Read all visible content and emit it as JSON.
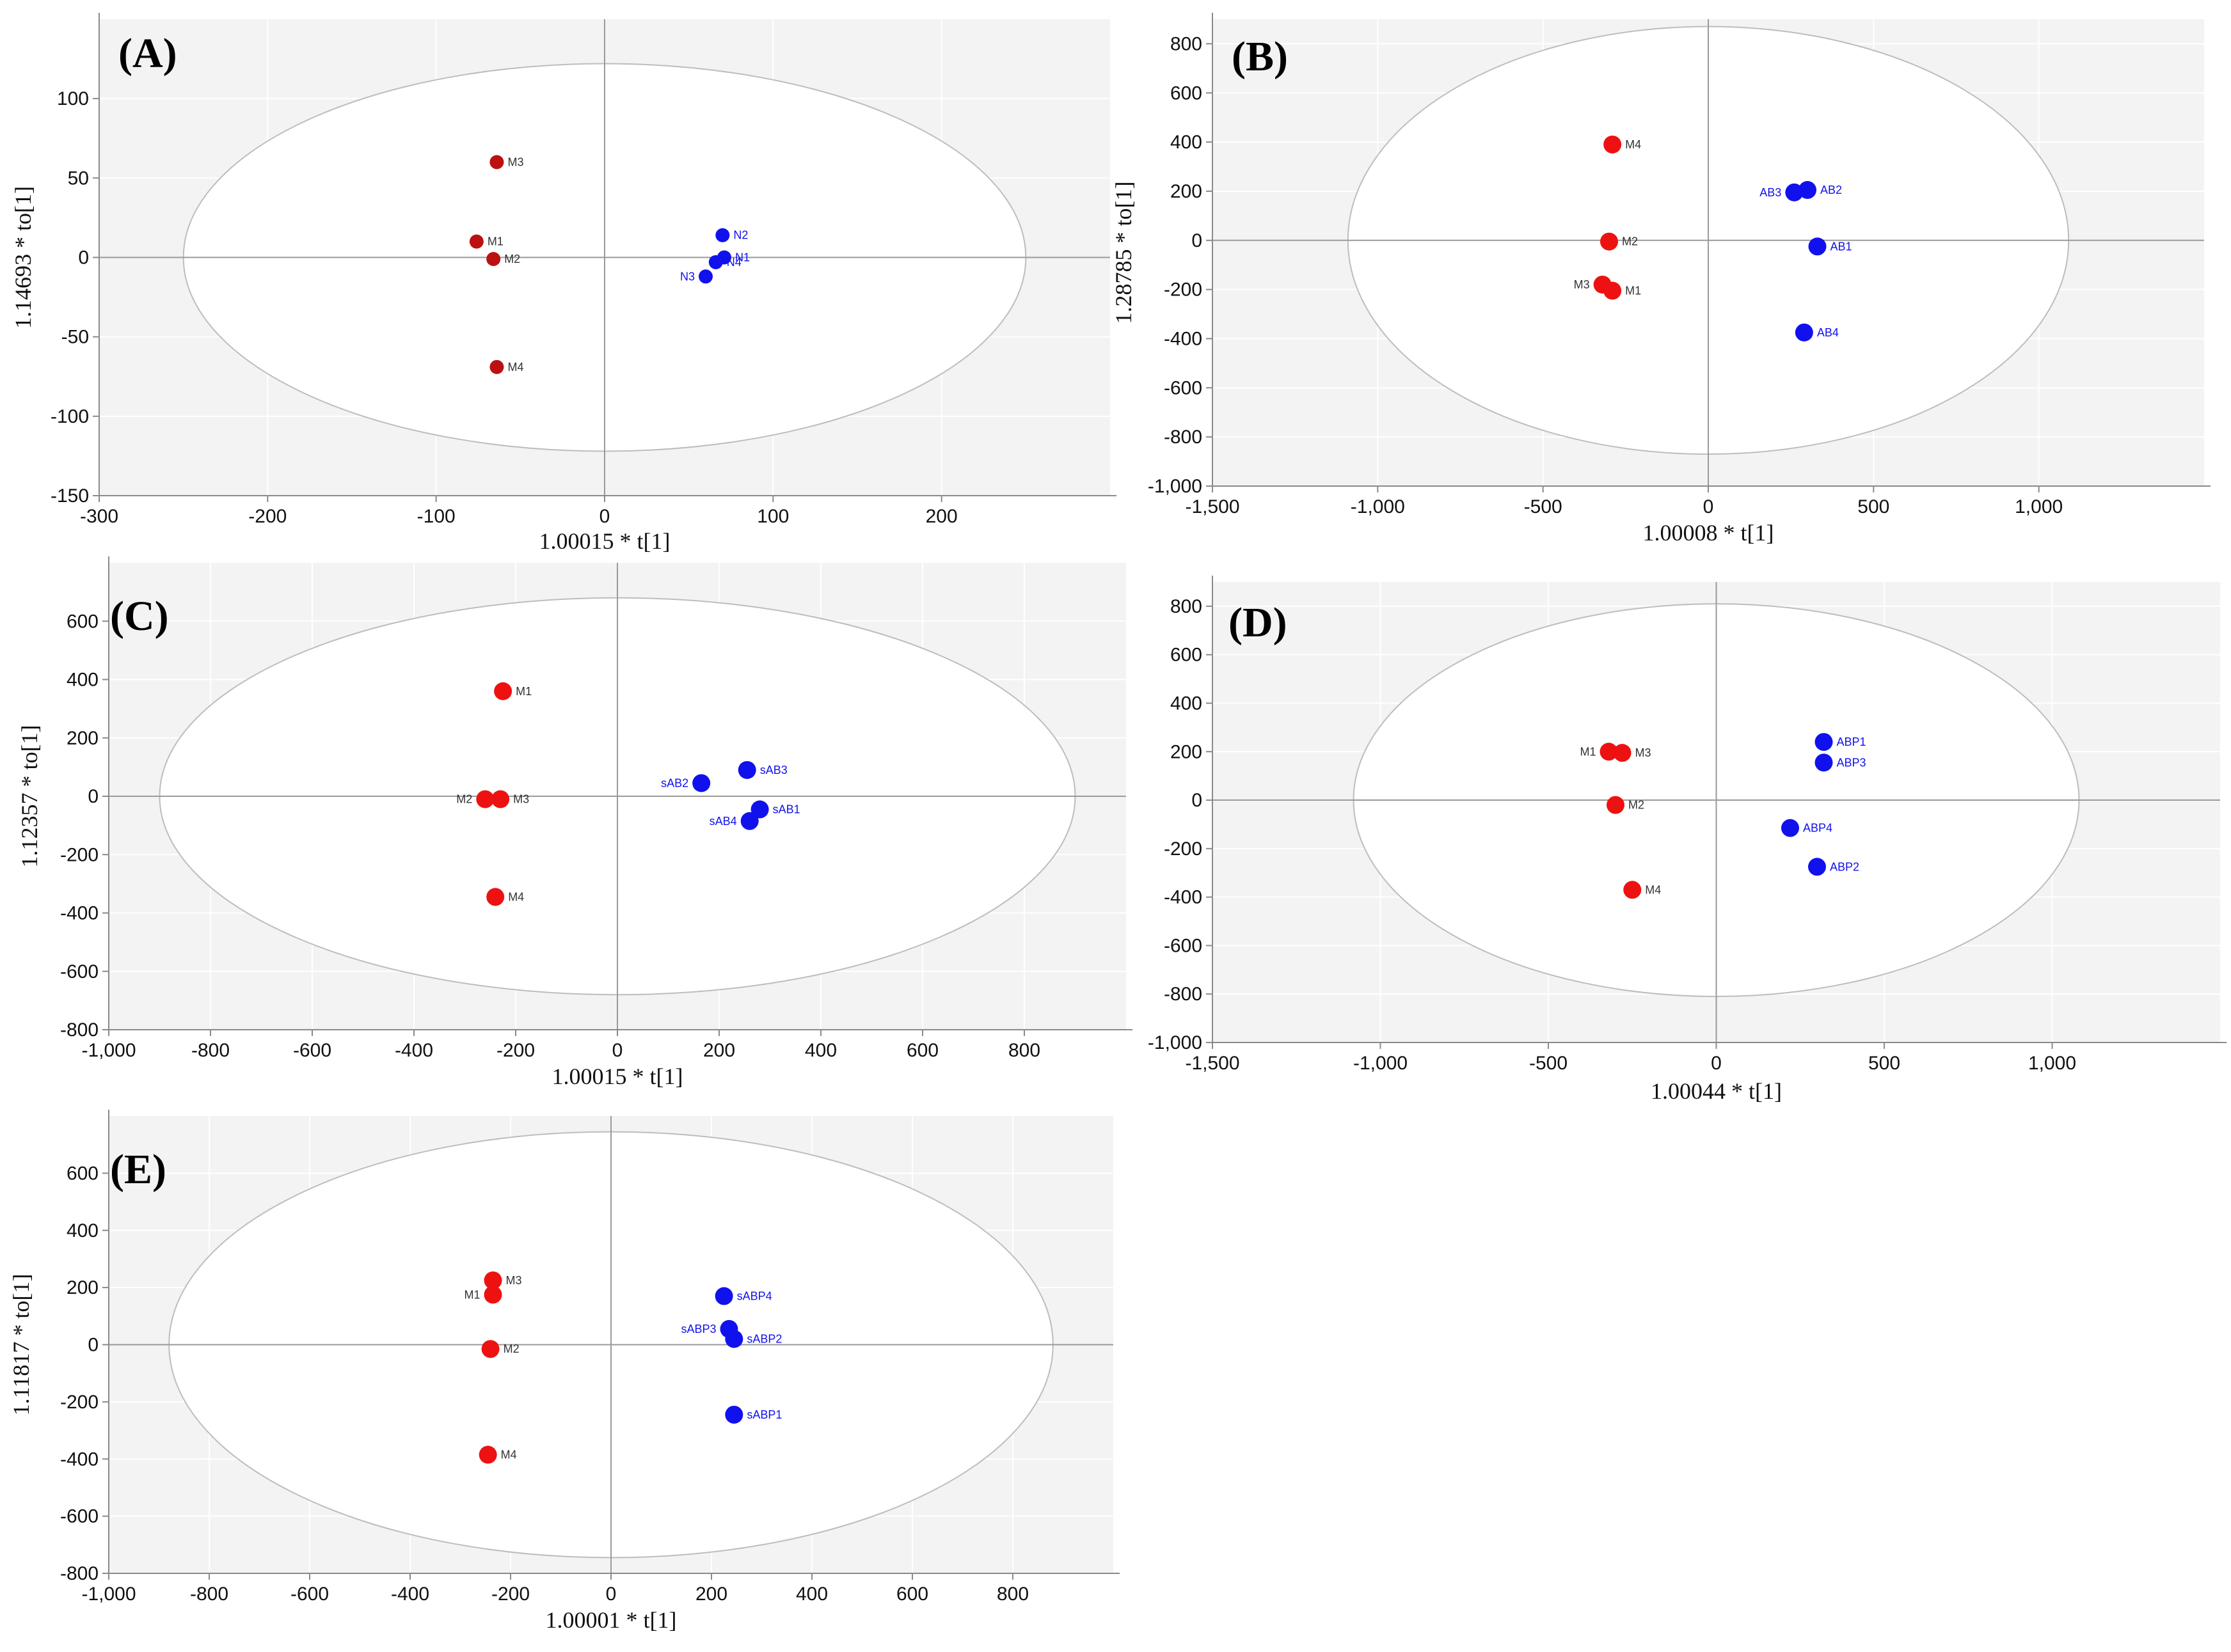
{
  "figure": {
    "colors": {
      "group_red": "#ee1111",
      "group_red_dark": "#bb1111",
      "group_blue": "#1111ee"
    }
  },
  "chart_data": [
    {
      "type": "scatter",
      "panel": "(A)",
      "xlabel": "1.00015 * t[1]",
      "ylabel": "1.14693 * to[1]",
      "xlim": [
        -300,
        300
      ],
      "ylim": [
        -150,
        150
      ],
      "xticks": [
        "-300",
        "-200",
        "-100",
        "0",
        "100",
        "200"
      ],
      "xtick_values": [
        -300,
        -200,
        -100,
        0,
        100,
        200
      ],
      "yticks": [
        "-150",
        "-100",
        "-50",
        "0",
        "50",
        "100"
      ],
      "ytick_values": [
        -150,
        -100,
        -50,
        0,
        50,
        100
      ],
      "ellipse": {
        "rx": 250,
        "ry": 122
      },
      "series": [
        {
          "color": "#bb1111",
          "points": [
            {
              "label": "M3",
              "x": -64,
              "y": 60
            },
            {
              "label": "M1",
              "x": -76,
              "y": 10
            },
            {
              "label": "M2",
              "x": -66,
              "y": -1
            },
            {
              "label": "M4",
              "x": -64,
              "y": -69
            }
          ]
        },
        {
          "color": "#1111ee",
          "points": [
            {
              "label": "N2",
              "x": 70,
              "y": 14
            },
            {
              "label": "N1",
              "x": 71,
              "y": 0
            },
            {
              "label": "N4",
              "x": 66,
              "y": -3
            },
            {
              "label": "N3",
              "x": 60,
              "y": -12
            }
          ]
        }
      ]
    },
    {
      "type": "scatter",
      "panel": "(B)",
      "xlabel": "1.00008 * t[1]",
      "ylabel": "1.28785 * to[1]",
      "xlim": [
        -1500,
        1500
      ],
      "ylim": [
        -1000,
        900
      ],
      "xticks": [
        "-1,500",
        "-1,000",
        "-500",
        "0",
        "500",
        "1,000"
      ],
      "xtick_values": [
        -1500,
        -1000,
        -500,
        0,
        500,
        1000
      ],
      "yticks": [
        "-1,000",
        "-800",
        "-600",
        "-400",
        "-200",
        "0",
        "200",
        "400",
        "600",
        "800"
      ],
      "ytick_values": [
        -1000,
        -800,
        -600,
        -400,
        -200,
        0,
        200,
        400,
        600,
        800
      ],
      "ellipse": {
        "rx": 1090,
        "ry": 870
      },
      "series": [
        {
          "color": "#ee1111",
          "points": [
            {
              "label": "M4",
              "x": -290,
              "y": 390
            },
            {
              "label": "M2",
              "x": -300,
              "y": -5
            },
            {
              "label": "M3",
              "x": -320,
              "y": -180
            },
            {
              "label": "M1",
              "x": -290,
              "y": -205
            }
          ]
        },
        {
          "color": "#1111ee",
          "points": [
            {
              "label": "AB3",
              "x": 260,
              "y": 195
            },
            {
              "label": "AB2",
              "x": 300,
              "y": 205
            },
            {
              "label": "AB1",
              "x": 330,
              "y": -25
            },
            {
              "label": "AB4",
              "x": 290,
              "y": -375
            }
          ]
        }
      ]
    },
    {
      "type": "scatter",
      "panel": "(C)",
      "xlabel": "1.00015 * t[1]",
      "ylabel": "1.12357 * to[1]",
      "xlim": [
        -1000,
        1000
      ],
      "ylim": [
        -800,
        800
      ],
      "xticks": [
        "-1,000",
        "-800",
        "-600",
        "-400",
        "-200",
        "0",
        "200",
        "400",
        "600",
        "800"
      ],
      "xtick_values": [
        -1000,
        -800,
        -600,
        -400,
        -200,
        0,
        200,
        400,
        600,
        800
      ],
      "yticks": [
        "-800",
        "-600",
        "-400",
        "-200",
        "0",
        "200",
        "400",
        "600"
      ],
      "ytick_values": [
        -800,
        -600,
        -400,
        -200,
        0,
        200,
        400,
        600
      ],
      "ellipse": {
        "rx": 900,
        "ry": 680
      },
      "series": [
        {
          "color": "#ee1111",
          "points": [
            {
              "label": "M1",
              "x": -225,
              "y": 360
            },
            {
              "label": "M2",
              "x": -260,
              "y": -10
            },
            {
              "label": "M3",
              "x": -230,
              "y": -10
            },
            {
              "label": "M4",
              "x": -240,
              "y": -345
            }
          ]
        },
        {
          "color": "#1111ee",
          "points": [
            {
              "label": "sAB3",
              "x": 255,
              "y": 90
            },
            {
              "label": "sAB2",
              "x": 165,
              "y": 45
            },
            {
              "label": "sAB1",
              "x": 280,
              "y": -45
            },
            {
              "label": "sAB4",
              "x": 260,
              "y": -85
            }
          ]
        }
      ]
    },
    {
      "type": "scatter",
      "panel": "(D)",
      "xlabel": "1.00044 * t[1]",
      "ylabel": "",
      "xlim": [
        -1500,
        1500
      ],
      "ylim": [
        -1000,
        900
      ],
      "xticks": [
        "-1,500",
        "-1,000",
        "-500",
        "0",
        "500",
        "1,000"
      ],
      "xtick_values": [
        -1500,
        -1000,
        -500,
        0,
        500,
        1000
      ],
      "yticks": [
        "-1,000",
        "-800",
        "-600",
        "-400",
        "-200",
        "0",
        "200",
        "400",
        "600",
        "800"
      ],
      "ytick_values": [
        -1000,
        -800,
        -600,
        -400,
        -200,
        0,
        200,
        400,
        600,
        800
      ],
      "ellipse": {
        "rx": 1080,
        "ry": 810
      },
      "series": [
        {
          "color": "#ee1111",
          "points": [
            {
              "label": "M1",
              "x": -320,
              "y": 200
            },
            {
              "label": "M3",
              "x": -280,
              "y": 195
            },
            {
              "label": "M2",
              "x": -300,
              "y": -20
            },
            {
              "label": "M4",
              "x": -250,
              "y": -370
            }
          ]
        },
        {
          "color": "#1111ee",
          "points": [
            {
              "label": "ABP1",
              "x": 320,
              "y": 240
            },
            {
              "label": "ABP3",
              "x": 320,
              "y": 155
            },
            {
              "label": "ABP4",
              "x": 220,
              "y": -115
            },
            {
              "label": "ABP2",
              "x": 300,
              "y": -275
            }
          ]
        }
      ]
    },
    {
      "type": "scatter",
      "panel": "(E)",
      "xlabel": "1.00001 * t[1]",
      "ylabel": "1.11817 * to[1]",
      "xlim": [
        -1000,
        1000
      ],
      "ylim": [
        -800,
        800
      ],
      "xticks": [
        "-1,000",
        "-800",
        "-600",
        "-400",
        "-200",
        "0",
        "200",
        "400",
        "600",
        "800"
      ],
      "xtick_values": [
        -1000,
        -800,
        -600,
        -400,
        -200,
        0,
        200,
        400,
        600,
        800
      ],
      "yticks": [
        "-800",
        "-600",
        "-400",
        "-200",
        "0",
        "200",
        "400",
        "600"
      ],
      "ytick_values": [
        -800,
        -600,
        -400,
        -200,
        0,
        200,
        400,
        600
      ],
      "ellipse": {
        "rx": 880,
        "ry": 745
      },
      "series": [
        {
          "color": "#ee1111",
          "points": [
            {
              "label": "M3",
              "x": -235,
              "y": 225
            },
            {
              "label": "M1",
              "x": -235,
              "y": 175
            },
            {
              "label": "M2",
              "x": -240,
              "y": -15
            },
            {
              "label": "M4",
              "x": -245,
              "y": -385
            }
          ]
        },
        {
          "color": "#1111ee",
          "points": [
            {
              "label": "sABP4",
              "x": 225,
              "y": 170
            },
            {
              "label": "sABP3",
              "x": 235,
              "y": 55
            },
            {
              "label": "sABP2",
              "x": 245,
              "y": 20
            },
            {
              "label": "sABP1",
              "x": 245,
              "y": -245
            }
          ]
        }
      ]
    }
  ]
}
